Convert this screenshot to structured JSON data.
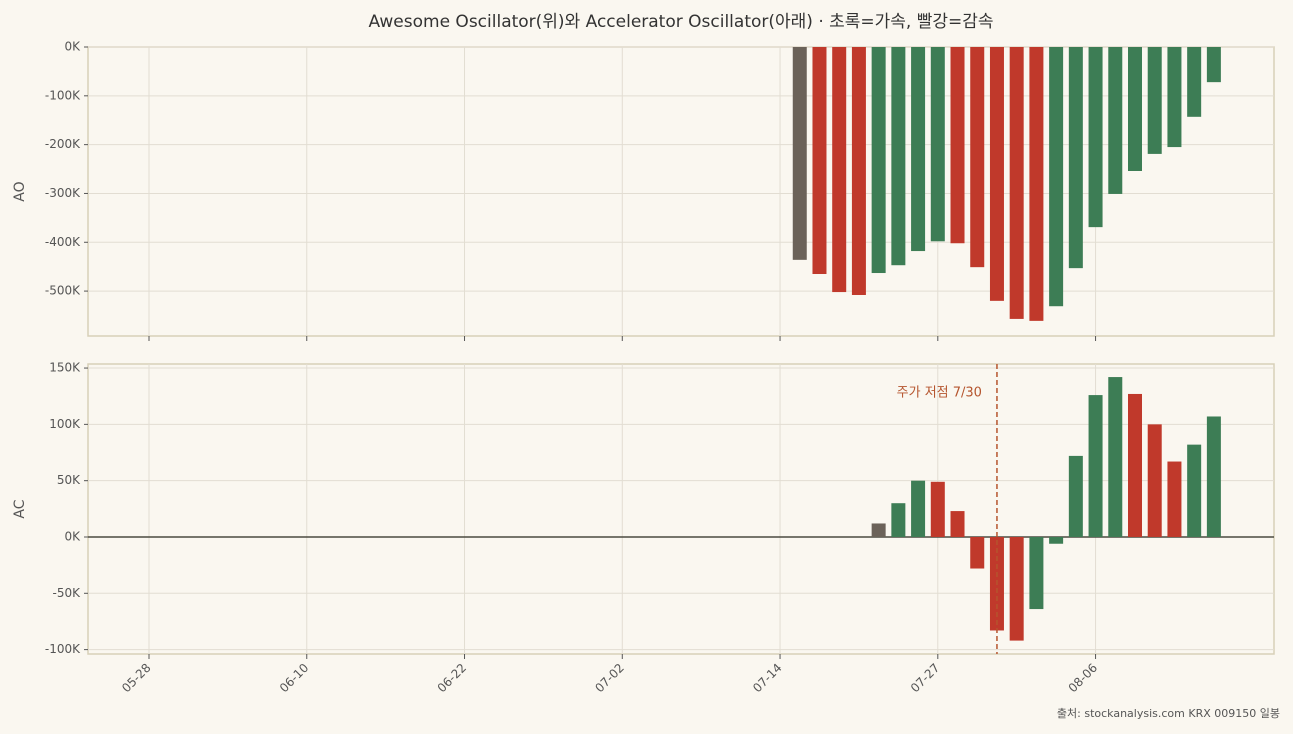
{
  "chart_data": {
    "type": "bar",
    "title": "Awesome Oscillator(위)와 Accelerator Oscillator(아래)  ·  초록=가속, 빨강=감속",
    "source": "출처: stockanalysis.com KRX 009150 일봉",
    "categories": [
      "05-28",
      null,
      null,
      null,
      null,
      null,
      null,
      null,
      "06-10",
      null,
      null,
      null,
      null,
      null,
      null,
      null,
      "06-22",
      null,
      null,
      null,
      null,
      null,
      null,
      null,
      "07-02",
      null,
      null,
      null,
      null,
      null,
      null,
      null,
      "07-14",
      null,
      null,
      null,
      null,
      null,
      null,
      null,
      "07-27",
      null,
      null,
      null,
      null,
      null,
      null,
      null,
      "08-06",
      null,
      null,
      null,
      null,
      null,
      null
    ],
    "grid": true,
    "panels": [
      {
        "ylabel": "AO",
        "ylim": [
          -592000,
          0
        ],
        "yticks": [
          {
            "value": -500000,
            "label": "-500K"
          },
          {
            "value": -400000,
            "label": "-400K"
          },
          {
            "value": -300000,
            "label": "-300K"
          },
          {
            "value": -200000,
            "label": "-200K"
          },
          {
            "value": -100000,
            "label": "-100K"
          },
          {
            "value": 0,
            "label": "0K"
          }
        ],
        "values": [
          null,
          null,
          null,
          null,
          null,
          null,
          null,
          null,
          null,
          null,
          null,
          null,
          null,
          null,
          null,
          null,
          null,
          null,
          null,
          null,
          null,
          null,
          null,
          null,
          null,
          null,
          null,
          null,
          null,
          null,
          null,
          null,
          null,
          -436000,
          -465000,
          -502000,
          -508000,
          -463000,
          -447000,
          -418000,
          -398000,
          -402000,
          -451000,
          -520000,
          -557000,
          -561000,
          -531000,
          -453000,
          -369000,
          -301000,
          -254000,
          -219000,
          -205000,
          -143000,
          -72000
        ],
        "colors": [
          null,
          null,
          null,
          null,
          null,
          null,
          null,
          null,
          null,
          null,
          null,
          null,
          null,
          null,
          null,
          null,
          null,
          null,
          null,
          null,
          null,
          null,
          null,
          null,
          null,
          null,
          null,
          null,
          null,
          null,
          null,
          null,
          null,
          "#6b6259",
          "#c0392b",
          "#c0392b",
          "#c0392b",
          "#3d7d55",
          "#3d7d55",
          "#3d7d55",
          "#3d7d55",
          "#c0392b",
          "#c0392b",
          "#c0392b",
          "#c0392b",
          "#c0392b",
          "#3d7d55",
          "#3d7d55",
          "#3d7d55",
          "#3d7d55",
          "#3d7d55",
          "#3d7d55",
          "#3d7d55",
          "#3d7d55",
          "#3d7d55"
        ]
      },
      {
        "ylabel": "AC",
        "ylim": [
          -103900,
          153600
        ],
        "yticks": [
          {
            "value": -100000,
            "label": "-100K"
          },
          {
            "value": -50000,
            "label": "-50K"
          },
          {
            "value": 0,
            "label": "0K"
          },
          {
            "value": 50000,
            "label": "50K"
          },
          {
            "value": 100000,
            "label": "100K"
          },
          {
            "value": 150000,
            "label": "150K"
          }
        ],
        "values": [
          null,
          null,
          null,
          null,
          null,
          null,
          null,
          null,
          null,
          null,
          null,
          null,
          null,
          null,
          null,
          null,
          null,
          null,
          null,
          null,
          null,
          null,
          null,
          null,
          null,
          null,
          null,
          null,
          null,
          null,
          null,
          null,
          null,
          null,
          null,
          null,
          null,
          12000,
          30000,
          50000,
          49000,
          23000,
          -28000,
          -83000,
          -92000,
          -64000,
          -6000,
          72000,
          126000,
          142000,
          127000,
          100000,
          67000,
          82000,
          107000
        ],
        "colors": [
          null,
          null,
          null,
          null,
          null,
          null,
          null,
          null,
          null,
          null,
          null,
          null,
          null,
          null,
          null,
          null,
          null,
          null,
          null,
          null,
          null,
          null,
          null,
          null,
          null,
          null,
          null,
          null,
          null,
          null,
          null,
          null,
          null,
          null,
          null,
          null,
          null,
          "#6b6259",
          "#3d7d55",
          "#3d7d55",
          "#c0392b",
          "#c0392b",
          "#c0392b",
          "#c0392b",
          "#c0392b",
          "#3d7d55",
          "#3d7d55",
          "#3d7d55",
          "#3d7d55",
          "#3d7d55",
          "#c0392b",
          "#c0392b",
          "#c0392b",
          "#3d7d55",
          "#3d7d55"
        ],
        "annotation": {
          "text": "주가 저점 7/30",
          "x": 43,
          "color": "#b5552e"
        }
      }
    ]
  }
}
